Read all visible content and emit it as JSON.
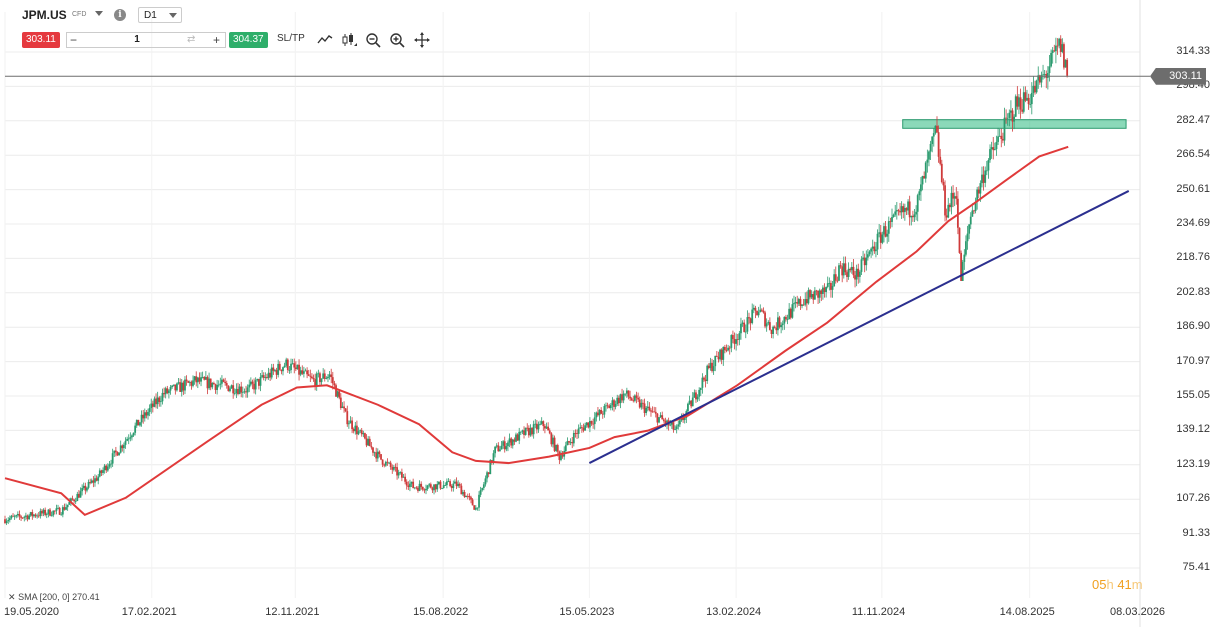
{
  "symbol": {
    "name": "JPM.US",
    "type": "CFD",
    "timeframe": "D1"
  },
  "trade": {
    "sell_price": "303.11",
    "quantity": "1",
    "buy_price": "304.37",
    "sltp_label": "SL/TP"
  },
  "icons": [
    "line-chart-icon",
    "candles-icon",
    "zoom-out-icon",
    "zoom-in-icon",
    "crosshair-icon",
    "info-icon",
    "swap-icon"
  ],
  "colors": {
    "sell": "#e5393f",
    "buy": "#2eae6a",
    "up": "#2a9a6e",
    "down": "#cf3a3a",
    "sma": "#e03a3a",
    "trendline": "#2b2f8f",
    "zone": "#3dbf8a",
    "price_line": "#6d6d6d",
    "timer": "#f0a020"
  },
  "y_axis": {
    "labels": [
      "314.33",
      "298.40",
      "282.47",
      "266.54",
      "250.61",
      "234.69",
      "218.76",
      "202.83",
      "186.90",
      "170.97",
      "155.05",
      "139.12",
      "123.19",
      "107.26",
      "91.33",
      "75.41"
    ]
  },
  "x_axis": {
    "labels": [
      "19.05.2020",
      "17.02.2021",
      "12.11.2021",
      "15.08.2022",
      "15.05.2023",
      "13.02.2024",
      "11.11.2024",
      "14.08.2025",
      "08.03.2026"
    ]
  },
  "current_price": "303.11",
  "indicator": {
    "label": "SMA [200, 0]",
    "value": "270.41"
  },
  "timer": {
    "hours": "05",
    "h_unit": "h",
    "minutes": "41",
    "m_unit": "m"
  },
  "chart_data": {
    "type": "candlestick",
    "ylim": [
      75.41,
      314.33
    ],
    "xlim": [
      "2020-05-19",
      "2026-03-08"
    ],
    "price_path": [
      [
        "2020-05-19",
        98
      ],
      [
        "2020-09-01",
        102
      ],
      [
        "2020-11-10",
        118
      ],
      [
        "2021-01-15",
        140
      ],
      [
        "2021-03-10",
        156
      ],
      [
        "2021-05-10",
        162
      ],
      [
        "2021-08-15",
        158
      ],
      [
        "2021-10-25",
        170
      ],
      [
        "2021-12-15",
        162
      ],
      [
        "2022-01-15",
        165
      ],
      [
        "2022-02-15",
        145
      ],
      [
        "2022-04-20",
        126
      ],
      [
        "2022-06-20",
        113
      ],
      [
        "2022-09-10",
        114
      ],
      [
        "2022-10-15",
        103
      ],
      [
        "2022-11-20",
        130
      ],
      [
        "2023-01-15",
        138
      ],
      [
        "2023-02-20",
        142
      ],
      [
        "2023-03-20",
        127
      ],
      [
        "2023-04-20",
        138
      ],
      [
        "2023-07-20",
        156
      ],
      [
        "2023-09-15",
        146
      ],
      [
        "2023-10-25",
        139
      ],
      [
        "2023-12-25",
        168
      ],
      [
        "2024-03-25",
        195
      ],
      [
        "2024-04-20",
        186
      ],
      [
        "2024-06-20",
        200
      ],
      [
        "2024-08-05",
        204
      ],
      [
        "2024-08-25",
        215
      ],
      [
        "2024-09-25",
        211
      ],
      [
        "2024-11-11",
        230
      ],
      [
        "2024-12-20",
        240
      ],
      [
        "2025-01-15",
        243
      ],
      [
        "2025-02-20",
        278
      ],
      [
        "2025-03-10",
        240
      ],
      [
        "2025-03-30",
        250
      ],
      [
        "2025-04-07",
        208
      ],
      [
        "2025-04-25",
        238
      ],
      [
        "2025-05-25",
        262
      ],
      [
        "2025-07-20",
        290
      ],
      [
        "2025-08-15",
        294
      ],
      [
        "2025-09-15",
        305
      ],
      [
        "2025-10-10",
        318
      ],
      [
        "2025-10-25",
        303
      ]
    ],
    "sma200": [
      [
        "2020-05-19",
        117
      ],
      [
        "2020-09-01",
        110
      ],
      [
        "2020-10-15",
        100
      ],
      [
        "2020-12-31",
        108
      ],
      [
        "2021-06-01",
        134
      ],
      [
        "2021-09-10",
        151
      ],
      [
        "2021-11-15",
        159
      ],
      [
        "2022-01-10",
        160
      ],
      [
        "2022-04-15",
        151
      ],
      [
        "2022-07-01",
        142
      ],
      [
        "2022-09-01",
        129
      ],
      [
        "2022-10-15",
        125
      ],
      [
        "2022-12-15",
        124
      ],
      [
        "2023-03-01",
        127
      ],
      [
        "2023-05-15",
        131
      ],
      [
        "2023-07-01",
        136
      ],
      [
        "2023-09-01",
        139
      ],
      [
        "2023-11-15",
        146
      ],
      [
        "2024-02-15",
        160
      ],
      [
        "2024-05-15",
        176
      ],
      [
        "2024-08-01",
        189
      ],
      [
        "2024-11-01",
        208
      ],
      [
        "2025-01-15",
        222
      ],
      [
        "2025-03-15",
        236
      ],
      [
        "2025-05-01",
        244
      ],
      [
        "2025-07-01",
        255
      ],
      [
        "2025-09-01",
        266
      ],
      [
        "2025-10-25",
        270.41
      ]
    ],
    "trendline": [
      [
        "2023-05-15",
        124
      ],
      [
        "2026-02-15",
        250
      ]
    ],
    "support_zone": {
      "x": [
        "2024-12-20",
        "2026-02-10"
      ],
      "y": [
        279,
        283
      ]
    },
    "last_price": 303.11
  }
}
